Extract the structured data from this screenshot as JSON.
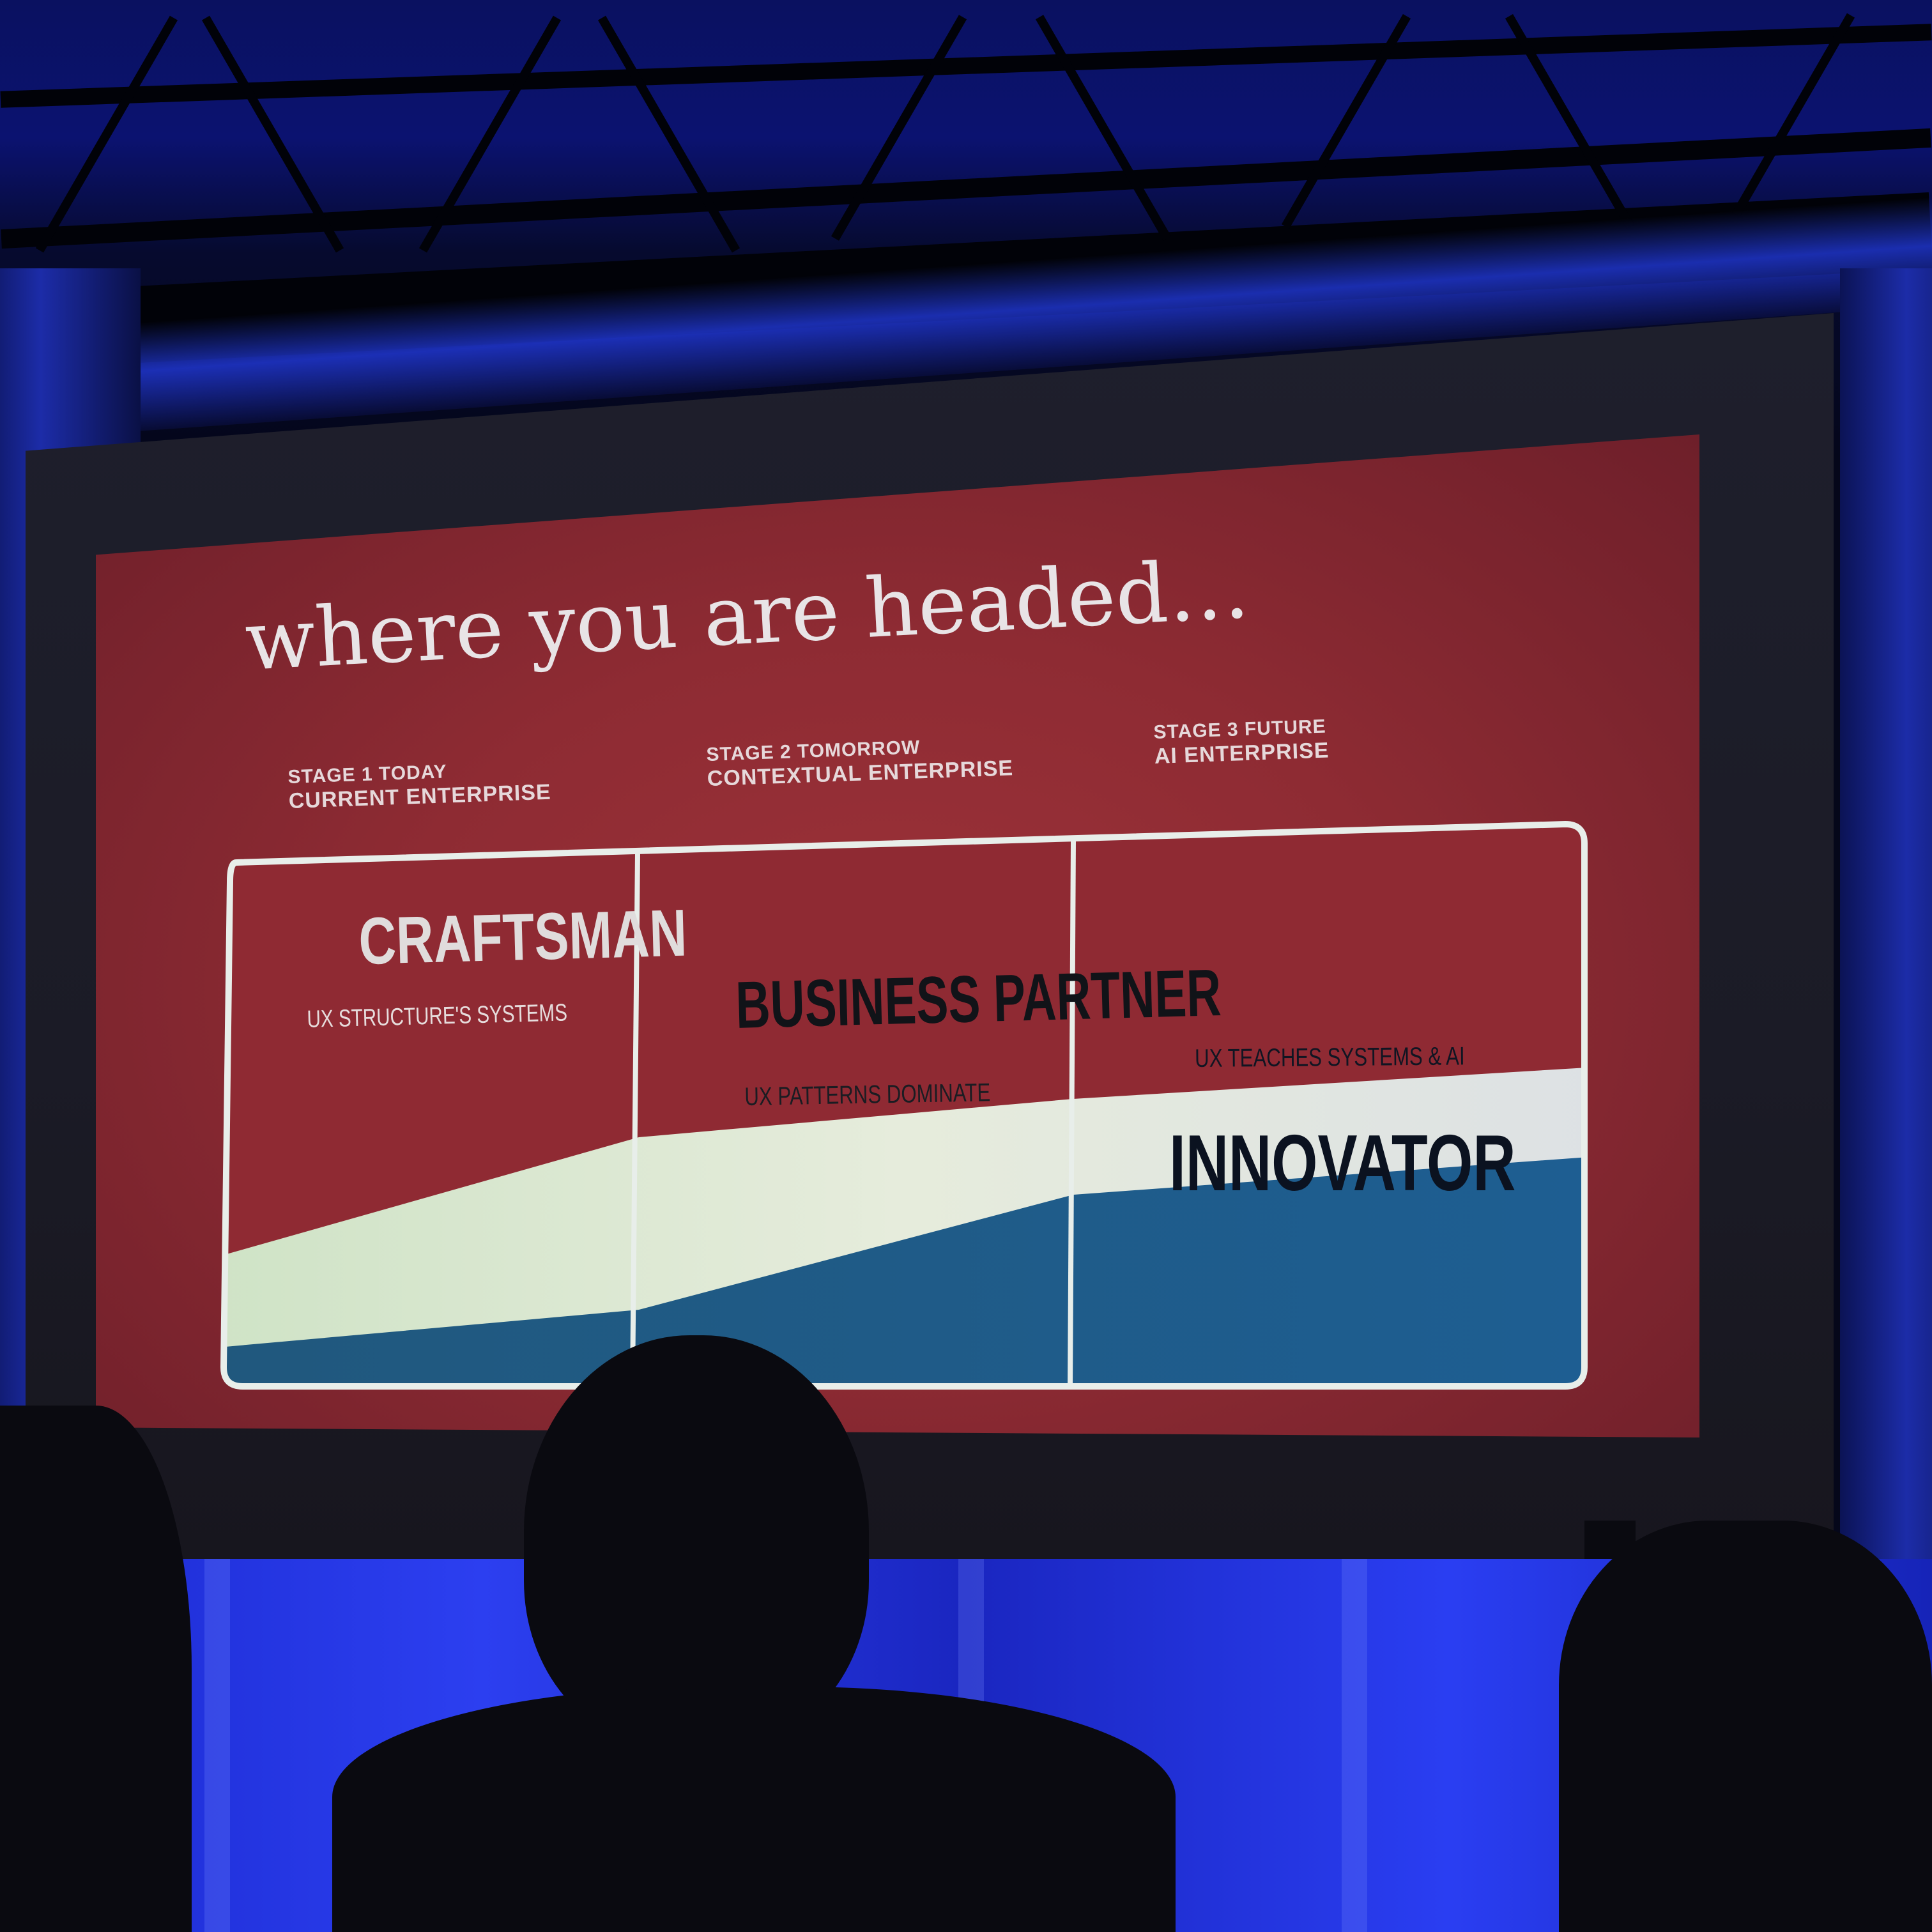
{
  "slide": {
    "title": "where you are headed…",
    "stages": [
      {
        "stage": "STAGE 1 TODAY",
        "name": "CURRENT ENTERPRISE"
      },
      {
        "stage": "STAGE 2 TOMORROW",
        "name": "CONTEXTUAL ENTERPRISE"
      },
      {
        "stage": "STAGE 3 FUTURE",
        "name": "AI ENTERPRISE"
      }
    ],
    "roles": {
      "craftsman": "CRAFTSMAN",
      "business_partner": "BUSINESS PARTNER",
      "innovator": "INNOVATOR"
    },
    "descriptions": {
      "stage1": "UX STRUCTURE'S SYSTEMS",
      "stage2": "UX PATTERNS DOMINATE",
      "stage3": "UX TEACHES SYSTEMS & AI"
    },
    "colors": {
      "red": "#8f2a33",
      "cream": "#dde6d8",
      "blue": "#1d5a86",
      "border": "#e8eeea"
    }
  }
}
